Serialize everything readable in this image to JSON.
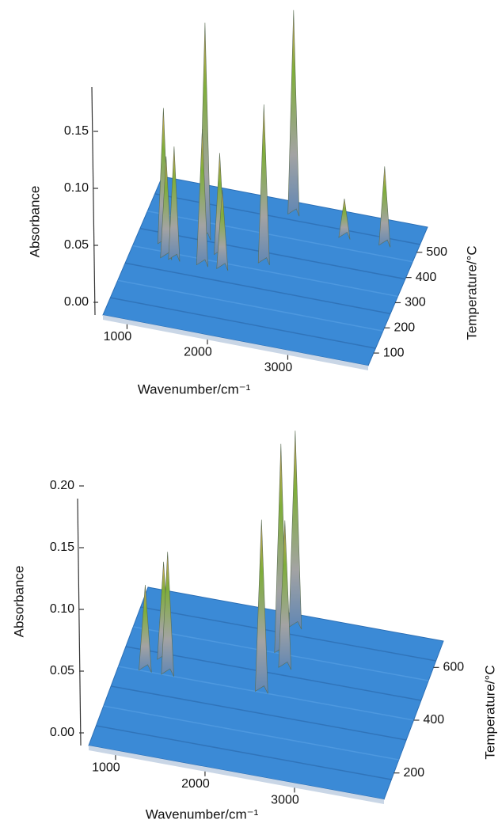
{
  "chart_data": [
    {
      "type": "surface3d",
      "x_label": "Wavenumber/cm⁻¹",
      "y_label": "Temperature/°C",
      "z_label": "Absorbance",
      "xlim": [
        700,
        4000
      ],
      "ylim": [
        50,
        600
      ],
      "zlim": [
        0,
        0.2
      ],
      "xticks": [
        1000,
        2000,
        3000
      ],
      "yticks": [
        100,
        200,
        300,
        400,
        500
      ],
      "zticks": [
        {
          "value": 0,
          "label": "0.00"
        },
        {
          "value": 0.05,
          "label": "0.05"
        },
        {
          "value": 0.1,
          "label": "0.10"
        },
        {
          "value": 0.15,
          "label": "0.15"
        }
      ],
      "x": [
        1050,
        1150,
        1250,
        1500,
        1600,
        1750,
        1850,
        2300,
        2400,
        3100,
        3600
      ],
      "y": [
        350,
        300,
        300,
        400,
        300,
        350,
        300,
        350,
        550,
        500,
        500
      ],
      "values": [
        0.12,
        0.09,
        0.1,
        0.19,
        0.12,
        0.09,
        0.07,
        0.14,
        0.18,
        0.035,
        0.07
      ],
      "color": "#3b8ad6"
    },
    {
      "type": "surface3d",
      "x_label": "Wavenumber/cm⁻¹",
      "y_label": "Temperature/°C",
      "z_label": "Absorbance",
      "xlim": [
        700,
        4000
      ],
      "ylim": [
        100,
        700
      ],
      "zlim": [
        0,
        0.2
      ],
      "xticks": [
        1000,
        2000,
        3000
      ],
      "yticks": [
        200,
        400,
        600
      ],
      "zticks": [
        {
          "value": 0,
          "label": "0.00"
        },
        {
          "value": 0.05,
          "label": "0.05"
        },
        {
          "value": 0.1,
          "label": "0.10"
        },
        {
          "value": 0.15,
          "label": "0.15"
        },
        {
          "value": 0.2,
          "label": "0.20"
        }
      ],
      "x": [
        1000,
        1150,
        1250,
        2300,
        2350,
        2400,
        2450
      ],
      "y": [
        400,
        450,
        400,
        400,
        550,
        650,
        500
      ],
      "values": [
        0.07,
        0.08,
        0.1,
        0.14,
        0.17,
        0.16,
        0.12
      ],
      "color": "#3b8ad6"
    }
  ]
}
